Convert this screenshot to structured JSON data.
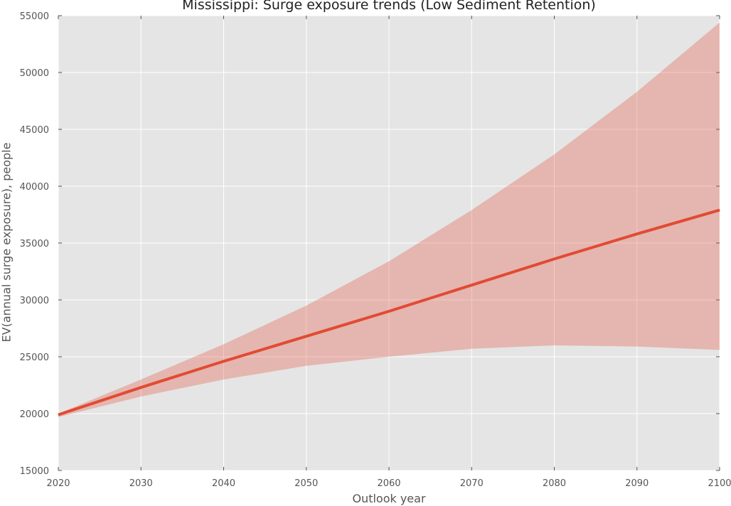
{
  "chart_data": {
    "type": "line",
    "title": "Mississippi: Surge exposure trends (Low Sediment Retention)",
    "xlabel": "Outlook year",
    "ylabel": "EV(annual surge exposure), people",
    "xlim": [
      2020,
      2100
    ],
    "ylim": [
      15000,
      55000
    ],
    "xticks": [
      2020,
      2030,
      2040,
      2050,
      2060,
      2070,
      2080,
      2090,
      2100
    ],
    "yticks": [
      15000,
      20000,
      25000,
      30000,
      35000,
      40000,
      45000,
      50000,
      55000
    ],
    "grid": true,
    "x": [
      2020,
      2030,
      2040,
      2050,
      2060,
      2070,
      2080,
      2090,
      2100
    ],
    "series": [
      {
        "values": [
          19900,
          22300,
          24600,
          26800,
          29000,
          31300,
          33600,
          35800,
          37900
        ],
        "lower": [
          19700,
          21500,
          23000,
          24200,
          25000,
          25700,
          26000,
          25900,
          25600
        ],
        "upper": [
          20000,
          23000,
          26100,
          29500,
          33400,
          37900,
          42800,
          48300,
          54400
        ]
      }
    ],
    "colors": {
      "line": "#e24a33",
      "band": "#e24a33",
      "background": "#e5e5e5",
      "grid": "#ffffff"
    }
  }
}
